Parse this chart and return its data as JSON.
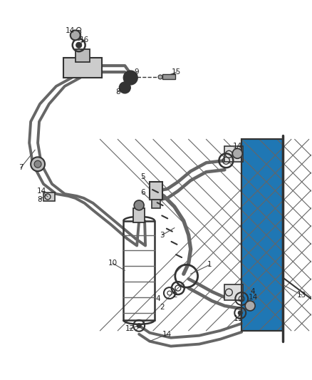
{
  "bg_color": "#ffffff",
  "lc": "#666666",
  "dc": "#333333",
  "figsize": [
    4.38,
    5.33
  ],
  "dpi": 100,
  "xlim": [
    0,
    438
  ],
  "ylim": [
    0,
    533
  ]
}
